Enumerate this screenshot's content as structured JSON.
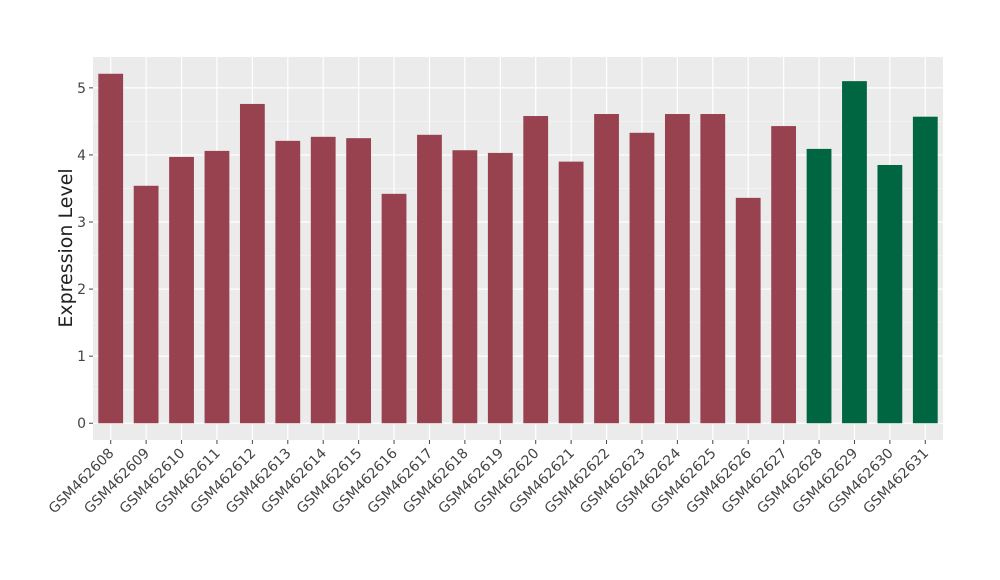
{
  "chart_data": {
    "type": "bar",
    "y_label": "Expression Level",
    "categories": [
      "GSM462608",
      "GSM462609",
      "GSM462610",
      "GSM462611",
      "GSM462612",
      "GSM462613",
      "GSM462614",
      "GSM462615",
      "GSM462616",
      "GSM462617",
      "GSM462618",
      "GSM462619",
      "GSM462620",
      "GSM462621",
      "GSM462622",
      "GSM462623",
      "GSM462624",
      "GSM462625",
      "GSM462626",
      "GSM462627",
      "GSM462628",
      "GSM462629",
      "GSM462630",
      "GSM462631"
    ],
    "values": [
      5.21,
      3.54,
      3.97,
      4.06,
      4.76,
      4.21,
      4.27,
      4.25,
      3.42,
      4.3,
      4.07,
      4.03,
      4.58,
      3.9,
      4.61,
      4.33,
      4.61,
      4.61,
      3.36,
      4.43,
      4.09,
      5.1,
      3.85,
      4.57
    ],
    "colors": [
      "#99424f",
      "#99424f",
      "#99424f",
      "#99424f",
      "#99424f",
      "#99424f",
      "#99424f",
      "#99424f",
      "#99424f",
      "#99424f",
      "#99424f",
      "#99424f",
      "#99424f",
      "#99424f",
      "#99424f",
      "#99424f",
      "#99424f",
      "#99424f",
      "#99424f",
      "#99424f",
      "#006641",
      "#006641",
      "#006641",
      "#006641"
    ],
    "ylim": [
      -0.25,
      5.46
    ],
    "yticks": [
      0,
      1,
      2,
      3,
      4,
      5
    ],
    "grid": true
  }
}
